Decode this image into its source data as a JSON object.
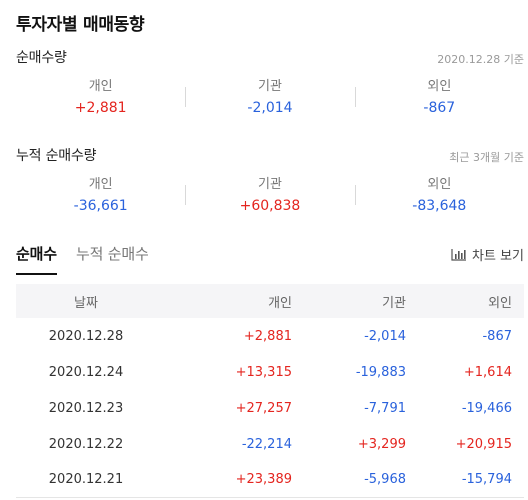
{
  "page_title": "투자자별 매매동향",
  "net": {
    "title": "순매수량",
    "date": "2020.12.28 기준",
    "items": [
      {
        "label": "개인",
        "value": "+2,881"
      },
      {
        "label": "기관",
        "value": "-2,014"
      },
      {
        "label": "외인",
        "value": "-867"
      }
    ]
  },
  "cumulative": {
    "title": "누적 순매수량",
    "date": "최근 3개월 기준",
    "items": [
      {
        "label": "개인",
        "value": "-36,661"
      },
      {
        "label": "기관",
        "value": "+60,838"
      },
      {
        "label": "외인",
        "value": "-83,648"
      }
    ]
  },
  "tabs": {
    "active": "순매수",
    "inactive": "누적 순매수",
    "chart_label": "차트 보기",
    "chart_icon": "bar-chart-icon"
  },
  "table": {
    "headers": [
      "날짜",
      "개인",
      "기관",
      "외인"
    ],
    "rows": [
      [
        "2020.12.28",
        "+2,881",
        "-2,014",
        "-867"
      ],
      [
        "2020.12.24",
        "+13,315",
        "-19,883",
        "+1,614"
      ],
      [
        "2020.12.23",
        "+27,257",
        "-7,791",
        "-19,466"
      ],
      [
        "2020.12.22",
        "-22,214",
        "+3,299",
        "+20,915"
      ],
      [
        "2020.12.21",
        "+23,389",
        "-5,968",
        "-15,794"
      ]
    ]
  },
  "colors": {
    "positive": "#e4251f",
    "negative": "#2a62dc"
  }
}
